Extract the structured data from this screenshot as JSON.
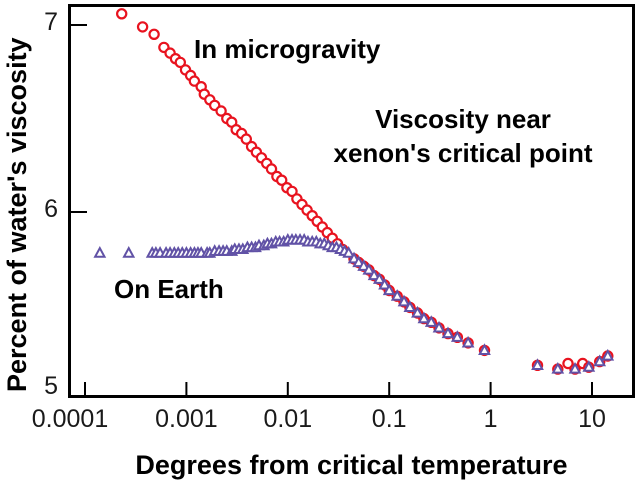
{
  "figure": {
    "annotation_title_line1": "Viscosity near",
    "annotation_title_line2": "xenon's critical point"
  },
  "chart_data": {
    "type": "scatter",
    "title": "Viscosity near xenon's critical point",
    "xlabel": "Degrees from critical temperature",
    "ylabel": "Percent of water's viscosity",
    "x_scale": "log",
    "x_range": [
      0.0001,
      25
    ],
    "y_range": [
      5,
      7.1
    ],
    "grid": false,
    "legend": "inline-annotations",
    "x_ticks": [
      {
        "t": 0.0001,
        "label": "0.0001"
      },
      {
        "t": 0.001,
        "label": "0.001"
      },
      {
        "t": 0.01,
        "label": "0.01"
      },
      {
        "t": 0.1,
        "label": "0.1"
      },
      {
        "t": 1,
        "label": "1"
      },
      {
        "t": 10,
        "label": "10"
      }
    ],
    "y_ticks": [
      {
        "v": 5,
        "label": "5"
      },
      {
        "v": 6,
        "label": "6"
      },
      {
        "v": 7,
        "label": "7"
      }
    ],
    "series": [
      {
        "name": "In microgravity",
        "marker": "circle",
        "color": "#e8131f",
        "points": [
          [
            0.00023,
            7.06
          ],
          [
            0.00037,
            6.99
          ],
          [
            0.00048,
            6.95
          ],
          [
            0.0006,
            6.88
          ],
          [
            0.00069,
            6.85
          ],
          [
            0.00078,
            6.82
          ],
          [
            0.00087,
            6.8
          ],
          [
            0.00098,
            6.76
          ],
          [
            0.0011,
            6.73
          ],
          [
            0.0012,
            6.7
          ],
          [
            0.0014,
            6.67
          ],
          [
            0.0015,
            6.63
          ],
          [
            0.0017,
            6.6
          ],
          [
            0.0019,
            6.57
          ],
          [
            0.0022,
            6.54
          ],
          [
            0.0025,
            6.5
          ],
          [
            0.0028,
            6.48
          ],
          [
            0.0031,
            6.44
          ],
          [
            0.0035,
            6.42
          ],
          [
            0.0039,
            6.39
          ],
          [
            0.0044,
            6.35
          ],
          [
            0.0049,
            6.32
          ],
          [
            0.0055,
            6.29
          ],
          [
            0.0062,
            6.26
          ],
          [
            0.0069,
            6.23
          ],
          [
            0.0078,
            6.19
          ],
          [
            0.0087,
            6.17
          ],
          [
            0.0098,
            6.13
          ],
          [
            0.011,
            6.11
          ],
          [
            0.0123,
            6.07
          ],
          [
            0.0138,
            6.04
          ],
          [
            0.0155,
            6.01
          ],
          [
            0.0174,
            5.98
          ],
          [
            0.0195,
            5.95
          ],
          [
            0.0219,
            5.92
          ],
          [
            0.0245,
            5.89
          ],
          [
            0.0275,
            5.86
          ],
          [
            0.0309,
            5.83
          ],
          [
            0.0347,
            5.8
          ],
          [
            0.045,
            5.75
          ],
          [
            0.05,
            5.73
          ],
          [
            0.056,
            5.71
          ],
          [
            0.063,
            5.69
          ],
          [
            0.071,
            5.66
          ],
          [
            0.08,
            5.64
          ],
          [
            0.09,
            5.61
          ],
          [
            0.1,
            5.58
          ],
          [
            0.12,
            5.55
          ],
          [
            0.14,
            5.52
          ],
          [
            0.16,
            5.49
          ],
          [
            0.19,
            5.46
          ],
          [
            0.22,
            5.43
          ],
          [
            0.26,
            5.41
          ],
          [
            0.31,
            5.38
          ],
          [
            0.38,
            5.35
          ],
          [
            0.47,
            5.33
          ],
          [
            0.6,
            5.3
          ],
          [
            0.87,
            5.26
          ],
          [
            2.9,
            5.18
          ],
          [
            4.6,
            5.16
          ],
          [
            5.8,
            5.19
          ],
          [
            6.8,
            5.16
          ],
          [
            8.1,
            5.19
          ],
          [
            9.3,
            5.17
          ],
          [
            11.9,
            5.2
          ],
          [
            14.3,
            5.23
          ]
        ]
      },
      {
        "name": "On Earth",
        "marker": "triangle",
        "color": "#6152a6",
        "points": [
          [
            0.00014,
            5.78
          ],
          [
            0.00027,
            5.78
          ],
          [
            0.00046,
            5.78
          ],
          [
            0.0005,
            5.78
          ],
          [
            0.00055,
            5.78
          ],
          [
            0.00063,
            5.78
          ],
          [
            0.00069,
            5.78
          ],
          [
            0.00076,
            5.78
          ],
          [
            0.00083,
            5.78
          ],
          [
            0.00091,
            5.78
          ],
          [
            0.001,
            5.78
          ],
          [
            0.0011,
            5.78
          ],
          [
            0.0012,
            5.78
          ],
          [
            0.0013,
            5.78
          ],
          [
            0.0014,
            5.78
          ],
          [
            0.0016,
            5.78
          ],
          [
            0.0017,
            5.78
          ],
          [
            0.0019,
            5.79
          ],
          [
            0.0021,
            5.79
          ],
          [
            0.0023,
            5.79
          ],
          [
            0.0025,
            5.79
          ],
          [
            0.0028,
            5.79
          ],
          [
            0.003,
            5.8
          ],
          [
            0.0033,
            5.8
          ],
          [
            0.0036,
            5.8
          ],
          [
            0.004,
            5.81
          ],
          [
            0.0044,
            5.81
          ],
          [
            0.0048,
            5.81
          ],
          [
            0.0052,
            5.82
          ],
          [
            0.0058,
            5.82
          ],
          [
            0.0063,
            5.83
          ],
          [
            0.0069,
            5.83
          ],
          [
            0.0076,
            5.84
          ],
          [
            0.0083,
            5.84
          ],
          [
            0.0091,
            5.84
          ],
          [
            0.01,
            5.85
          ],
          [
            0.011,
            5.85
          ],
          [
            0.012,
            5.85
          ],
          [
            0.0132,
            5.85
          ],
          [
            0.0145,
            5.85
          ],
          [
            0.0158,
            5.84
          ],
          [
            0.0174,
            5.84
          ],
          [
            0.0191,
            5.84
          ],
          [
            0.0209,
            5.83
          ],
          [
            0.0229,
            5.83
          ],
          [
            0.0251,
            5.82
          ],
          [
            0.0275,
            5.81
          ],
          [
            0.0302,
            5.81
          ],
          [
            0.0331,
            5.8
          ],
          [
            0.0363,
            5.79
          ],
          [
            0.0398,
            5.78
          ],
          [
            0.045,
            5.75
          ],
          [
            0.05,
            5.73
          ],
          [
            0.056,
            5.71
          ],
          [
            0.063,
            5.69
          ],
          [
            0.071,
            5.66
          ],
          [
            0.08,
            5.64
          ],
          [
            0.09,
            5.61
          ],
          [
            0.1,
            5.58
          ],
          [
            0.12,
            5.55
          ],
          [
            0.14,
            5.52
          ],
          [
            0.16,
            5.49
          ],
          [
            0.19,
            5.46
          ],
          [
            0.22,
            5.43
          ],
          [
            0.26,
            5.41
          ],
          [
            0.31,
            5.38
          ],
          [
            0.38,
            5.35
          ],
          [
            0.47,
            5.33
          ],
          [
            0.6,
            5.3
          ],
          [
            0.87,
            5.26
          ],
          [
            2.9,
            5.18
          ],
          [
            4.6,
            5.16
          ],
          [
            6.8,
            5.16
          ],
          [
            9.3,
            5.17
          ],
          [
            11.9,
            5.2
          ],
          [
            14.3,
            5.23
          ]
        ]
      }
    ],
    "colors": {
      "microgravity_marker": "#e8131f",
      "earth_marker": "#6152a6",
      "axis": "#000000",
      "background": "#ffffff"
    }
  }
}
